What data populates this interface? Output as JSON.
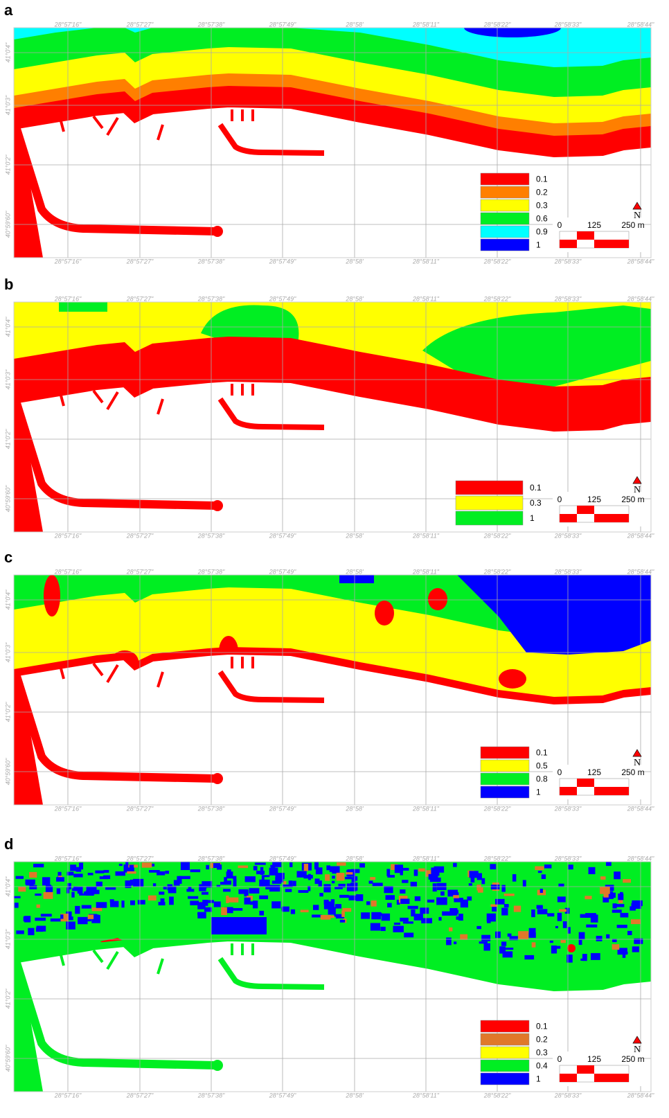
{
  "panels": [
    {
      "label": "a",
      "legend": [
        {
          "label": "0.1",
          "color": "#ff0000"
        },
        {
          "label": "0.2",
          "color": "#ff7f00"
        },
        {
          "label": "0.3",
          "color": "#ffff00"
        },
        {
          "label": "0.6",
          "color": "#00ee22"
        },
        {
          "label": "0.9",
          "color": "#00ffff"
        },
        {
          "label": "1",
          "color": "#0000ff"
        }
      ]
    },
    {
      "label": "b",
      "legend": [
        {
          "label": "0.1",
          "color": "#ff0000"
        },
        {
          "label": "0.3",
          "color": "#ffff00"
        },
        {
          "label": "1",
          "color": "#00ee22"
        }
      ]
    },
    {
      "label": "c",
      "legend": [
        {
          "label": "0.1",
          "color": "#ff0000"
        },
        {
          "label": "0.5",
          "color": "#ffff00"
        },
        {
          "label": "0.8",
          "color": "#00ee22"
        },
        {
          "label": "1",
          "color": "#0000ff"
        }
      ]
    },
    {
      "label": "d",
      "legend": [
        {
          "label": "0.1",
          "color": "#ff0000"
        },
        {
          "label": "0.2",
          "color": "#e0782a"
        },
        {
          "label": "0.3",
          "color": "#ffff00"
        },
        {
          "label": "0.4",
          "color": "#00ee22"
        },
        {
          "label": "1",
          "color": "#0000ff"
        }
      ]
    }
  ],
  "x_labels": [
    "28°57'16\"",
    "28°57'27\"",
    "28°57'38\"",
    "28°57'49\"",
    "28°58'",
    "28°58'11\"",
    "28°58'22\"",
    "28°58'33\"",
    "28°58'44\""
  ],
  "y_labels": [
    "41°0'4\"",
    "41°0'3\"",
    "41°0'2\"",
    "40°59'60\""
  ],
  "scale": [
    "0",
    "125",
    "250 m"
  ],
  "north": "N"
}
